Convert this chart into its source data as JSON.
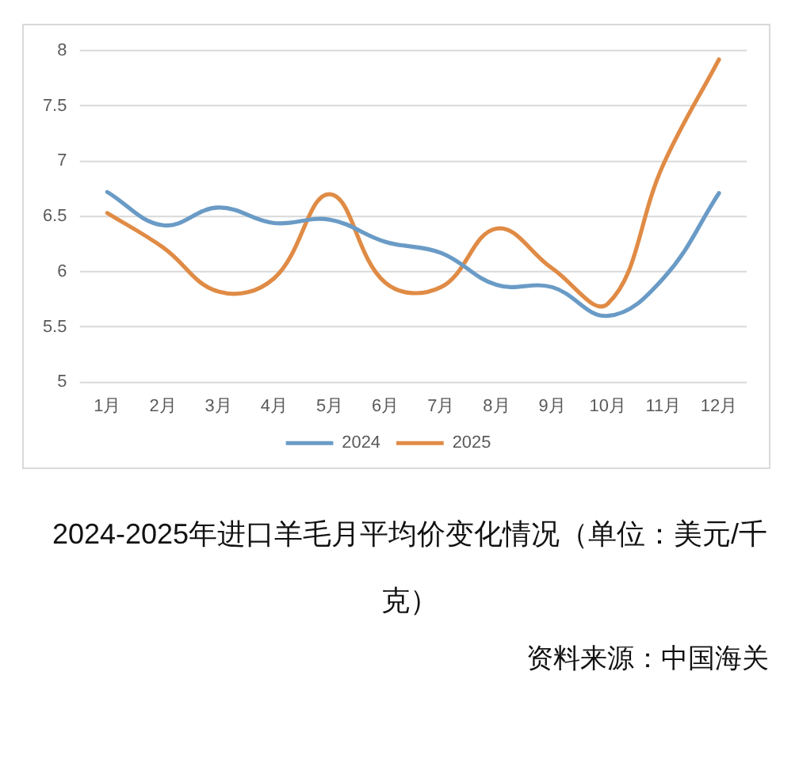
{
  "chart_data": {
    "type": "line",
    "title": "2024-2025年进口羊毛月平均价变化情况（单位：美元/千克）",
    "categories": [
      "1月",
      "2月",
      "3月",
      "4月",
      "5月",
      "6月",
      "7月",
      "8月",
      "9月",
      "10月",
      "11月",
      "12月"
    ],
    "series": [
      {
        "name": "2024",
        "color": "#6a9bc6",
        "values": [
          6.72,
          6.42,
          6.58,
          6.44,
          6.47,
          6.27,
          6.17,
          5.88,
          5.86,
          5.6,
          5.94,
          6.71
        ]
      },
      {
        "name": "2025",
        "color": "#e08b45",
        "values": [
          6.53,
          6.22,
          5.82,
          5.94,
          6.7,
          5.9,
          5.86,
          6.39,
          6.03,
          5.71,
          6.97,
          7.92
        ]
      }
    ],
    "ylim": [
      5,
      8
    ],
    "yticks": [
      5,
      5.5,
      6,
      6.5,
      7,
      7.5,
      8
    ],
    "grid": "y",
    "legend": "bottom",
    "line_style": "solid",
    "annotations": [
      "资料来源：中国海关"
    ]
  }
}
